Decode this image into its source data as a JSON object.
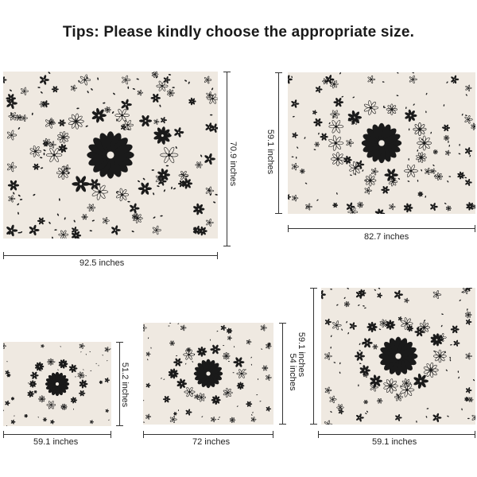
{
  "title": "Tips: Please kindly choose the appropriate size.",
  "colors": {
    "fabric": "#efe9e1",
    "ink": "#1a1a1a"
  },
  "sizes": [
    {
      "width_label": "92.5 inches",
      "height_label": "70.9 inches"
    },
    {
      "width_label": "82.7 inches",
      "height_label": "59.1 inches"
    },
    {
      "width_label": "59.1 inches",
      "height_label": "51.2 inches"
    },
    {
      "width_label": "72 inches",
      "height_label": "54 inches"
    },
    {
      "width_label": "59.1 inches",
      "height_label": "59.1 inches"
    }
  ]
}
